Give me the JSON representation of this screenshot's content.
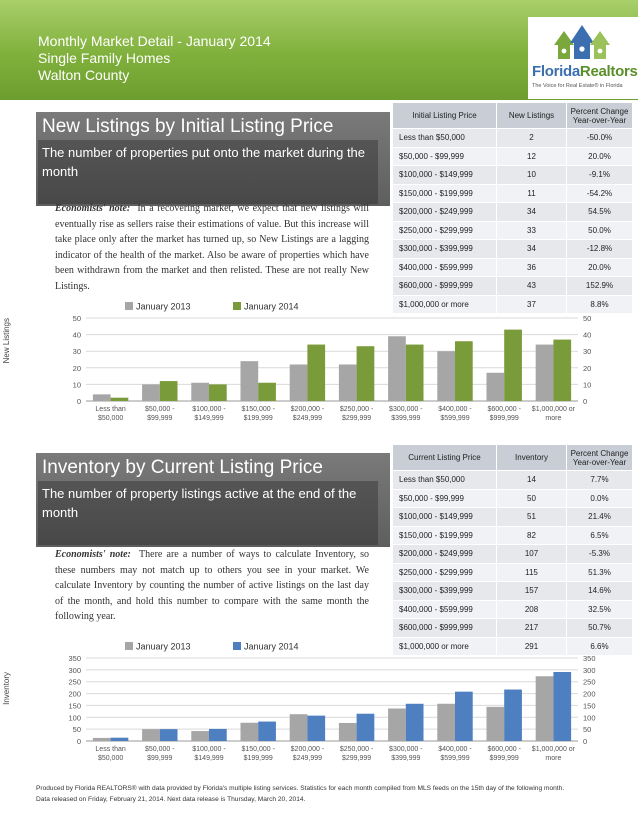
{
  "header": {
    "lines": [
      "Monthly Market Detail - January 2014",
      "Single Family Homes",
      "Walton County"
    ],
    "brand_a": "Florida",
    "brand_b": "Realtors",
    "tagline": "The Voice for Real Estate® in Florida"
  },
  "colors": {
    "series_2013": "#a6a6a6",
    "listings_2014": "#7a9b3a",
    "inventory_2014": "#4d7fc1"
  },
  "listings": {
    "title": "New Listings by Initial Listing Price",
    "subtitle": "The number of properties put onto the market during the month",
    "note_label": "Economists' note:",
    "note_text": "In a recovering market, we expect that new listings will eventually rise as sellers raise their estimations of value. But this increase will take place only after the market has turned up, so New Listings are a lagging indicator of the health of the market. Also be aware of properties which have been withdrawn from the market and then relisted. These are not really New Listings.",
    "table_headers": [
      "Initial Listing Price",
      "New Listings",
      "Percent Change Year-over-Year"
    ],
    "rows": [
      [
        "Less than $50,000",
        "2",
        "-50.0%"
      ],
      [
        "$50,000 - $99,999",
        "12",
        "20.0%"
      ],
      [
        "$100,000 - $149,999",
        "10",
        "-9.1%"
      ],
      [
        "$150,000 - $199,999",
        "11",
        "-54.2%"
      ],
      [
        "$200,000 - $249,999",
        "34",
        "54.5%"
      ],
      [
        "$250,000 - $299,999",
        "33",
        "50.0%"
      ],
      [
        "$300,000 - $399,999",
        "34",
        "-12.8%"
      ],
      [
        "$400,000 - $599,999",
        "36",
        "20.0%"
      ],
      [
        "$600,000 - $999,999",
        "43",
        "152.9%"
      ],
      [
        "$1,000,000 or more",
        "37",
        "8.8%"
      ]
    ]
  },
  "inventory": {
    "title": "Inventory by Current Listing Price",
    "subtitle": "The number of property listings active at the end of the month",
    "note_label": "Economists' note:",
    "note_text": "There are a number of ways to calculate Inventory, so these numbers may not match up to others you see in your market. We calculate Inventory by counting the number of active listings on the last day of the month, and hold this number to compare with the same month the following year.",
    "table_headers": [
      "Current Listing Price",
      "Inventory",
      "Percent Change Year-over-Year"
    ],
    "rows": [
      [
        "Less than $50,000",
        "14",
        "7.7%"
      ],
      [
        "$50,000 - $99,999",
        "50",
        "0.0%"
      ],
      [
        "$100,000 - $149,999",
        "51",
        "21.4%"
      ],
      [
        "$150,000 - $199,999",
        "82",
        "6.5%"
      ],
      [
        "$200,000 - $249,999",
        "107",
        "-5.3%"
      ],
      [
        "$250,000 - $299,999",
        "115",
        "51.3%"
      ],
      [
        "$300,000 - $399,999",
        "157",
        "14.6%"
      ],
      [
        "$400,000 - $599,999",
        "208",
        "32.5%"
      ],
      [
        "$600,000 - $999,999",
        "217",
        "50.7%"
      ],
      [
        "$1,000,000 or more",
        "291",
        "6.6%"
      ]
    ]
  },
  "chart_data": [
    {
      "type": "bar",
      "ylabel": "New Listings",
      "ylim": [
        0,
        50
      ],
      "yticks": [
        0,
        10,
        20,
        30,
        40,
        50
      ],
      "legend": "top-center",
      "grid": true,
      "categories": [
        [
          "Less than",
          "$50,000"
        ],
        [
          "$50,000 -",
          "$99,999"
        ],
        [
          "$100,000 -",
          "$149,999"
        ],
        [
          "$150,000 -",
          "$199,999"
        ],
        [
          "$200,000 -",
          "$249,999"
        ],
        [
          "$250,000 -",
          "$299,999"
        ],
        [
          "$300,000 -",
          "$399,999"
        ],
        [
          "$400,000 -",
          "$599,999"
        ],
        [
          "$600,000 -",
          "$999,999"
        ],
        [
          "$1,000,000 or",
          "more"
        ]
      ],
      "series": [
        {
          "name": "January 2013",
          "values": [
            4,
            10,
            11,
            24,
            22,
            22,
            39,
            30,
            17,
            34
          ]
        },
        {
          "name": "January 2014",
          "values": [
            2,
            12,
            10,
            11,
            34,
            33,
            34,
            36,
            43,
            37
          ]
        }
      ]
    },
    {
      "type": "bar",
      "ylabel": "Inventory",
      "ylim": [
        0,
        350
      ],
      "yticks": [
        0,
        50,
        100,
        150,
        200,
        250,
        300,
        350
      ],
      "legend": "top-center",
      "grid": true,
      "categories": [
        [
          "Less than",
          "$50,000"
        ],
        [
          "$50,000 -",
          "$99,999"
        ],
        [
          "$100,000 -",
          "$149,999"
        ],
        [
          "$150,000 -",
          "$199,999"
        ],
        [
          "$200,000 -",
          "$249,999"
        ],
        [
          "$250,000 -",
          "$299,999"
        ],
        [
          "$300,000 -",
          "$399,999"
        ],
        [
          "$400,000 -",
          "$599,999"
        ],
        [
          "$600,000 -",
          "$999,999"
        ],
        [
          "$1,000,000 or",
          "more"
        ]
      ],
      "series": [
        {
          "name": "January 2013",
          "values": [
            13,
            50,
            42,
            77,
            113,
            76,
            137,
            157,
            144,
            273
          ]
        },
        {
          "name": "January 2014",
          "values": [
            14,
            50,
            51,
            82,
            107,
            115,
            157,
            208,
            217,
            291
          ]
        }
      ]
    }
  ],
  "footer": {
    "line1": "Produced by Florida REALTORS® with data provided by Florida's multiple listing services. Statistics for each month compiled from MLS feeds on the 15th day of the following month.",
    "line2": "Data released on Friday, February 21, 2014. Next data release is Thursday, March 20, 2014."
  }
}
